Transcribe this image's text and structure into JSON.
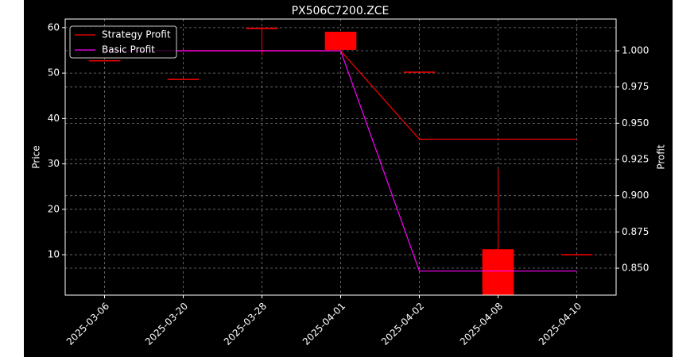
{
  "chart_data": {
    "type": "candlestick",
    "title": "PX506C7200.ZCE",
    "ylabel": "Price",
    "y2label": "Profit",
    "categories": [
      "2025-03-06",
      "2025-03-20",
      "2025-03-28",
      "2025-04-01",
      "2025-04-02",
      "2025-04-08",
      "2025-04-10"
    ],
    "candles": {
      "color": "#ff0000",
      "open": [
        52.7,
        48.6,
        59.7,
        55.1,
        50.2,
        11.2,
        10.0
      ],
      "high": [
        52.7,
        48.6,
        60.0,
        59.1,
        50.2,
        28.9,
        10.0
      ],
      "low": [
        52.7,
        48.6,
        53.9,
        55.1,
        50.2,
        1.0,
        10.0
      ],
      "close": [
        52.7,
        48.6,
        60.0,
        59.1,
        50.2,
        1.0,
        10.0
      ]
    },
    "series": [
      {
        "name": "Strategy Profit",
        "color": "#ff0000",
        "axis": "y2",
        "values": [
          1.0,
          1.0,
          1.0,
          1.0,
          0.939,
          0.939,
          0.939
        ]
      },
      {
        "name": "Basic Profit",
        "color": "#ff00ff",
        "axis": "y2",
        "values": [
          1.0,
          1.0,
          1.0,
          1.0,
          0.848,
          0.848,
          0.848
        ]
      }
    ],
    "ylim": [
      1.1,
      61.9
    ],
    "yticks": [
      10,
      20,
      30,
      40,
      50,
      60
    ],
    "y2lim": [
      0.8314,
      1.0219
    ],
    "y2ticks": [
      {
        "value": 0.85,
        "label": "0.850"
      },
      {
        "value": 0.875,
        "label": "0.875"
      },
      {
        "value": 0.9,
        "label": "0.900"
      },
      {
        "value": 0.925,
        "label": "0.925"
      },
      {
        "value": 0.95,
        "label": "0.950"
      },
      {
        "value": 0.975,
        "label": "0.975"
      },
      {
        "value": 1.0,
        "label": "1.000"
      }
    ],
    "grid": true,
    "legend": "upper left"
  }
}
